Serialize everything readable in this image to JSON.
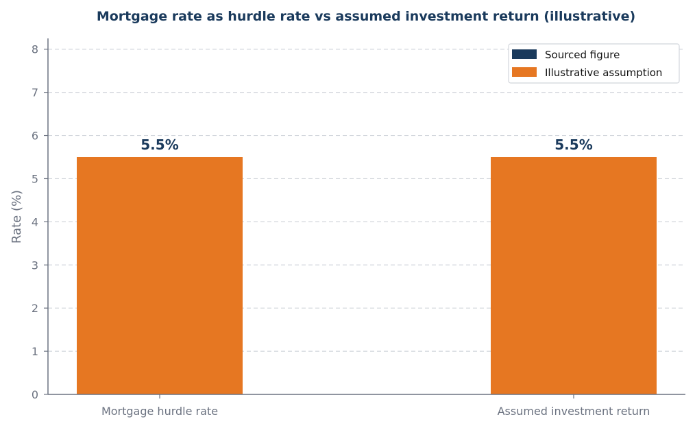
{
  "chart_data": {
    "type": "bar",
    "title": "Mortgage rate as hurdle rate vs assumed investment return (illustrative)",
    "xlabel": "",
    "ylabel": "Rate (%)",
    "ylim": [
      0,
      8.25
    ],
    "yticks": [
      "0",
      "1",
      "2",
      "3",
      "4",
      "5",
      "6",
      "7",
      "8"
    ],
    "grid": "horizontal dashed",
    "legend_position": "top-right",
    "categories": [
      "Mortgage hurdle rate",
      "Assumed investment return"
    ],
    "values": [
      5.5,
      5.5
    ],
    "data_labels": [
      "5.5%",
      "5.5%"
    ],
    "bar_series": [
      "Illustrative assumption",
      "Illustrative assumption"
    ],
    "legend": [
      {
        "label": "Sourced figure",
        "color": "#1a3a5c"
      },
      {
        "label": "Illustrative assumption",
        "color": "#e67722"
      }
    ],
    "colors": {
      "title": "#1a3a5c",
      "axis": "#6b7280",
      "tick_text": "#6b7280",
      "grid": "#d1d5db",
      "data_label": "#1a3a5c",
      "sourced": "#1a3a5c",
      "illustrative": "#e67722"
    }
  }
}
